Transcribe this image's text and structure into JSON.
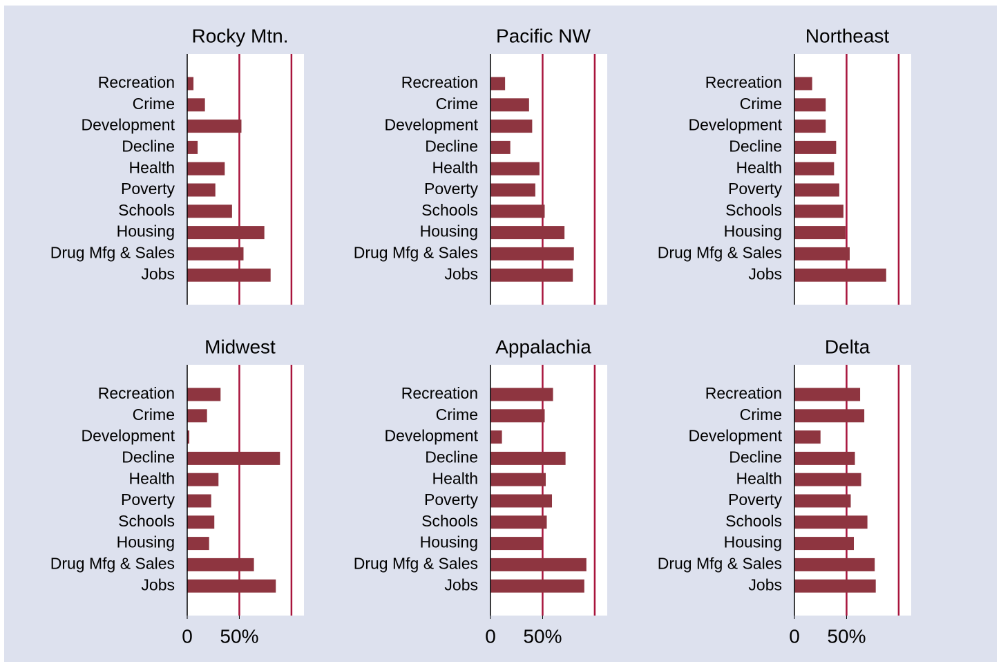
{
  "chart_data": [
    {
      "type": "hbar",
      "title": "Rocky Mtn.",
      "categories": [
        "Recreation",
        "Crime",
        "Development",
        "Decline",
        "Health",
        "Poverty",
        "Schools",
        "Housing",
        "Drug Mfg & Sales",
        "Jobs"
      ],
      "values": [
        6,
        17,
        52,
        10,
        36,
        27,
        43,
        74,
        54,
        80
      ],
      "color": "#8e3540",
      "xlim": [
        0,
        112
      ],
      "reference_lines": [
        50,
        100
      ],
      "line_color": "#a8143c"
    },
    {
      "type": "hbar",
      "title": "Pacific NW",
      "categories": [
        "Recreation",
        "Crime",
        "Development",
        "Decline",
        "Health",
        "Poverty",
        "Schools",
        "Housing",
        "Drug Mfg & Sales",
        "Jobs"
      ],
      "values": [
        14,
        37,
        40,
        19,
        47,
        43,
        52,
        71,
        80,
        79
      ],
      "color": "#8e3540",
      "xlim": [
        0,
        112
      ],
      "reference_lines": [
        50,
        100
      ],
      "line_color": "#a8143c"
    },
    {
      "type": "hbar",
      "title": "Northeast",
      "categories": [
        "Recreation",
        "Crime",
        "Development",
        "Decline",
        "Health",
        "Poverty",
        "Schools",
        "Housing",
        "Drug Mfg & Sales",
        "Jobs"
      ],
      "values": [
        17,
        30,
        30,
        40,
        38,
        43,
        47,
        49,
        53,
        88
      ],
      "color": "#8e3540",
      "xlim": [
        0,
        112
      ],
      "reference_lines": [
        50,
        100
      ],
      "line_color": "#a8143c"
    },
    {
      "type": "hbar",
      "title": "Midwest",
      "categories": [
        "Recreation",
        "Crime",
        "Development",
        "Decline",
        "Health",
        "Poverty",
        "Schools",
        "Housing",
        "Drug Mfg & Sales",
        "Jobs"
      ],
      "values": [
        32,
        19,
        2,
        89,
        30,
        23,
        26,
        21,
        64,
        85
      ],
      "color": "#8e3540",
      "xlim": [
        0,
        112
      ],
      "xticks": [
        0,
        {
          "value": 50,
          "label": "50%"
        }
      ],
      "reference_lines": [
        50,
        100
      ],
      "line_color": "#a8143c"
    },
    {
      "type": "hbar",
      "title": "Appalachia",
      "categories": [
        "Recreation",
        "Crime",
        "Development",
        "Decline",
        "Health",
        "Poverty",
        "Schools",
        "Housing",
        "Drug Mfg & Sales",
        "Jobs"
      ],
      "values": [
        60,
        52,
        11,
        72,
        53,
        59,
        54,
        50,
        92,
        90
      ],
      "color": "#8e3540",
      "xlim": [
        0,
        112
      ],
      "xticks": [
        0,
        {
          "value": 50,
          "label": "50%"
        }
      ],
      "reference_lines": [
        50,
        100
      ],
      "line_color": "#a8143c"
    },
    {
      "type": "hbar",
      "title": "Delta",
      "categories": [
        "Recreation",
        "Crime",
        "Development",
        "Decline",
        "Health",
        "Poverty",
        "Schools",
        "Housing",
        "Drug Mfg & Sales",
        "Jobs"
      ],
      "values": [
        63,
        67,
        25,
        58,
        64,
        54,
        70,
        57,
        77,
        78
      ],
      "color": "#8e3540",
      "xlim": [
        0,
        112
      ],
      "xticks": [
        0,
        {
          "value": 50,
          "label": "50%"
        }
      ],
      "reference_lines": [
        50,
        100
      ],
      "line_color": "#a8143c"
    }
  ]
}
